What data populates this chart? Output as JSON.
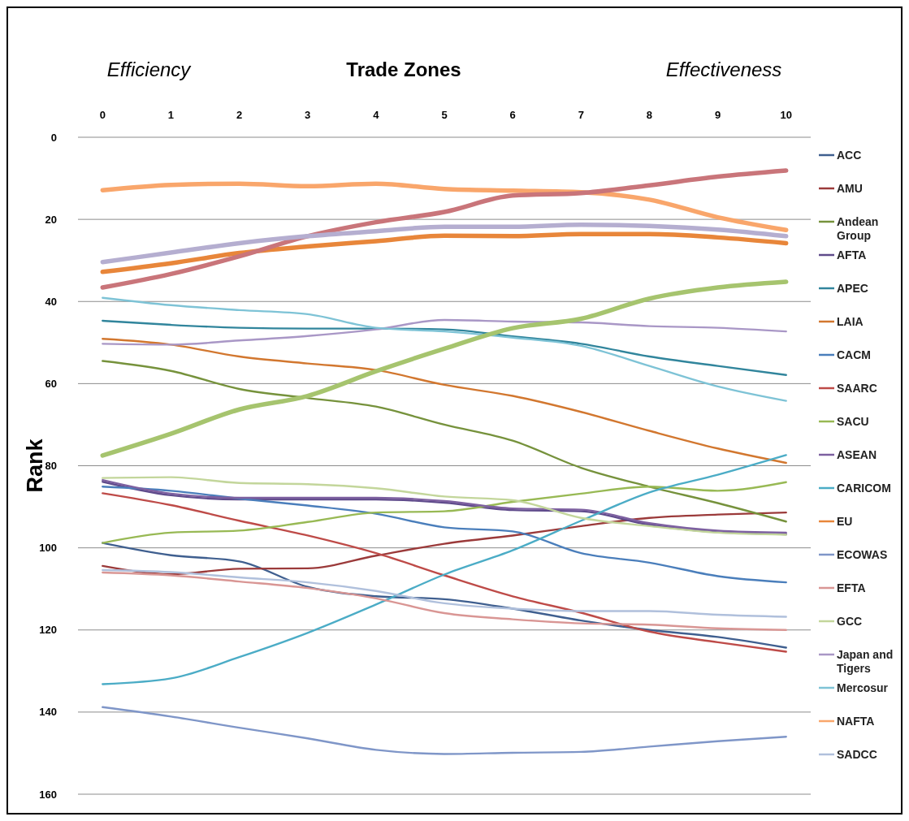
{
  "chart_data": {
    "type": "line",
    "title": "Trade Zones",
    "ylabel": "Rank",
    "annotations": [
      "Efficiency",
      "Effectiveness"
    ],
    "categories": [
      "0",
      "1",
      "2",
      "3",
      "4",
      "5",
      "6",
      "7",
      "8",
      "9",
      "10"
    ],
    "ylim": [
      160,
      0
    ],
    "yticks": [
      0,
      20,
      40,
      60,
      80,
      100,
      120,
      140,
      160
    ],
    "grid": "y",
    "legend": "right",
    "marker": "none",
    "line_style": "solid",
    "series": [
      {
        "name": "ACC",
        "color": "#3f5f8f",
        "values": [
          98.8,
          101.8,
          103.3,
          109.5,
          111.8,
          112.5,
          114.8,
          117.7,
          120,
          121.7,
          124.3
        ]
      },
      {
        "name": "AMU",
        "color": "#9b3a3a",
        "values": [
          104.4,
          106.4,
          105.1,
          105,
          101.9,
          99,
          97,
          94.7,
          92.7,
          91.9,
          91.4
        ]
      },
      {
        "name": "Andean Group",
        "color": "#76923c",
        "values": [
          54.5,
          56.9,
          61.3,
          63.5,
          65.6,
          70,
          73.9,
          80.5,
          85.1,
          89.1,
          93.6
        ]
      },
      {
        "name": "AFTA",
        "color": "#5f4b8b",
        "values": [
          83.9,
          87.2,
          88.2,
          88.2,
          88.2,
          89,
          90.8,
          91.1,
          94.4,
          96.2,
          96.7
        ]
      },
      {
        "name": "APEC",
        "color": "#31859c",
        "values": [
          44.7,
          45.7,
          46.4,
          46.6,
          46.6,
          46.8,
          48.5,
          50.3,
          53.4,
          55.7,
          57.9
        ]
      },
      {
        "name": "LAIA",
        "color": "#d2772f",
        "values": [
          49.1,
          50.5,
          53.4,
          55.1,
          56.7,
          60.3,
          63,
          66.9,
          71.5,
          75.8,
          79.3
        ]
      },
      {
        "name": "CACM",
        "color": "#4a7ebb",
        "values": [
          85.1,
          86.1,
          88,
          89.7,
          91.7,
          95,
          96,
          101.3,
          103.6,
          106.9,
          108.4
        ]
      },
      {
        "name": "SAARC",
        "color": "#be4b48",
        "values": [
          86.7,
          89.6,
          93.4,
          97,
          101.3,
          106.7,
          111.8,
          115.8,
          120.4,
          123,
          125.3
        ]
      },
      {
        "name": "SACU",
        "color": "#98b954",
        "values": [
          98.8,
          96.3,
          95.8,
          93.7,
          91.4,
          91.1,
          88.8,
          86.8,
          85.1,
          86.1,
          84
        ]
      },
      {
        "name": "ASEAN",
        "color": "#7d60a0",
        "values": [
          83.5,
          86.8,
          87.8,
          87.8,
          87.8,
          88.6,
          90.4,
          90.7,
          94,
          95.8,
          96.3
        ]
      },
      {
        "name": "CARICOM",
        "color": "#4bacc6",
        "values": [
          133.2,
          131.8,
          126.6,
          120.7,
          113.8,
          106.5,
          100.6,
          93.4,
          86.5,
          82.2,
          77.4
        ]
      },
      {
        "name": "EU",
        "color": "#e8863a",
        "values": [
          32.8,
          30.7,
          28.2,
          26.6,
          25.3,
          24,
          24.1,
          23.6,
          23.6,
          24.4,
          25.8
        ]
      },
      {
        "name": "ECOWAS",
        "color": "#7f96c8",
        "values": [
          138.8,
          141.1,
          143.8,
          146.4,
          149.2,
          150.2,
          149.9,
          149.7,
          148.4,
          147.1,
          146
        ]
      },
      {
        "name": "EFTA",
        "color": "#d99694",
        "values": [
          106,
          106.7,
          108.2,
          109.8,
          112.3,
          115.9,
          117.4,
          118.4,
          118.7,
          119.6,
          120
        ]
      },
      {
        "name": "GCC",
        "color": "#c3d69b",
        "values": [
          83,
          82.8,
          84.2,
          84.5,
          85.5,
          87.5,
          88.4,
          92.7,
          94.7,
          96.3,
          96.8
        ]
      },
      {
        "name": "Japan and Tigers",
        "color": "#a997c6",
        "values": [
          50.3,
          50.5,
          49.5,
          48.4,
          46.8,
          44.5,
          44.9,
          45.1,
          46,
          46.4,
          47.3
        ]
      },
      {
        "name": "Mercosur",
        "color": "#7ec3d6",
        "values": [
          39.1,
          40.9,
          42.1,
          43.1,
          46.4,
          47.3,
          48.8,
          50.8,
          55.7,
          60.7,
          64.2
        ]
      },
      {
        "name": "NAFTA",
        "color": "#f9a66b",
        "values": [
          12.9,
          11.6,
          11.3,
          11.9,
          11.3,
          12.6,
          13,
          13.4,
          15.2,
          19.5,
          22.6
        ]
      },
      {
        "name": "SADCC",
        "color": "#b0c0dc",
        "values": [
          105.4,
          105.9,
          107.2,
          108.4,
          110.5,
          113.5,
          114.8,
          115.4,
          115.4,
          116.3,
          116.8
        ]
      },
      {
        "color": "#c9757a",
        "values": [
          36.6,
          33.3,
          29,
          24.1,
          20.7,
          18.2,
          14.2,
          13.6,
          11.7,
          9.6,
          8.1
        ]
      },
      {
        "color": "#b5aed0",
        "values": [
          30.4,
          28.1,
          25.8,
          24.1,
          22.9,
          21.8,
          21.8,
          21.3,
          21.6,
          22.5,
          24.1
        ]
      },
      {
        "color": "#a6c46e",
        "values": [
          77.5,
          72.2,
          66.3,
          63,
          57,
          51.5,
          46.5,
          44.2,
          39.3,
          36.6,
          35.2
        ]
      }
    ]
  }
}
